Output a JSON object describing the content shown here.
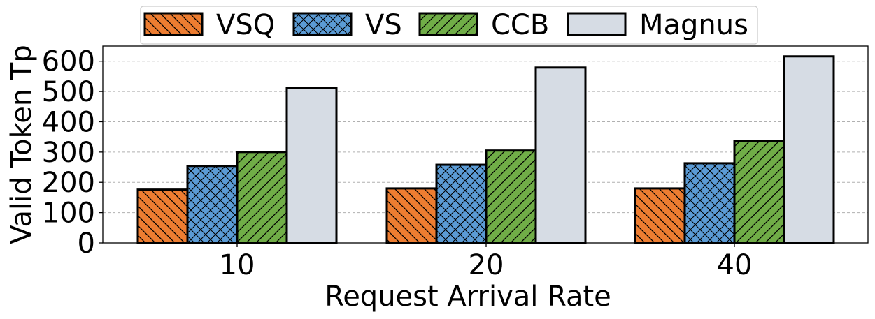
{
  "chart_data": {
    "type": "bar",
    "categories": [
      "10",
      "20",
      "40"
    ],
    "series": [
      {
        "name": "VSQ",
        "values": [
          176,
          180,
          180
        ],
        "color": "#ed7d31",
        "hatch": "backslash"
      },
      {
        "name": "VS",
        "values": [
          254,
          258,
          263
        ],
        "color": "#5b9bd5",
        "hatch": "cross"
      },
      {
        "name": "CCB",
        "values": [
          300,
          305,
          336
        ],
        "color": "#70ad47",
        "hatch": "slash"
      },
      {
        "name": "Magnus",
        "values": [
          511,
          579,
          616
        ],
        "color": "#d6dce4",
        "hatch": "none"
      }
    ],
    "xlabel": "Request Arrival Rate",
    "ylabel": "Valid Token Tp",
    "ylim": [
      0,
      650
    ],
    "yticks": [
      0,
      100,
      200,
      300,
      400,
      500,
      600
    ],
    "grid": "y-dashed",
    "legend_position": "top-center"
  }
}
